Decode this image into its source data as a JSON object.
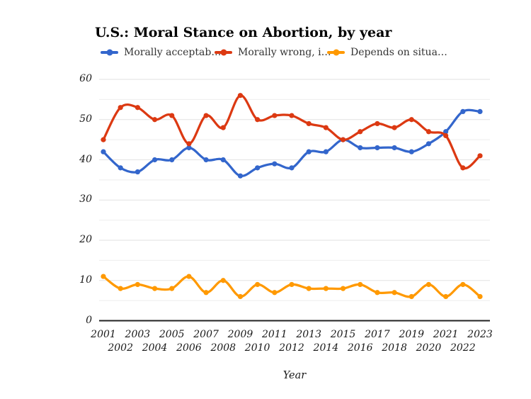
{
  "chart_data": {
    "type": "line",
    "title": "U.S.: Moral Stance on Abortion, by year",
    "xlabel": "Year",
    "ylabel": "",
    "x": [
      2001,
      2002,
      2003,
      2004,
      2005,
      2006,
      2007,
      2008,
      2009,
      2010,
      2011,
      2012,
      2013,
      2014,
      2015,
      2016,
      2017,
      2018,
      2019,
      2020,
      2021,
      2022,
      2023
    ],
    "yticks": [
      0,
      10,
      20,
      30,
      40,
      50,
      60
    ],
    "ylim": [
      0,
      60
    ],
    "grid": "horizontal major every 10, minor every 5",
    "legend_position": "top",
    "series": [
      {
        "name": "morally-acceptable",
        "legend_label": "Morally acceptab…",
        "color": "#3366CC",
        "values": [
          42,
          38,
          37,
          40,
          40,
          43,
          40,
          40,
          36,
          38,
          39,
          38,
          42,
          42,
          45,
          43,
          43,
          43,
          42,
          44,
          47,
          52,
          52
        ]
      },
      {
        "name": "morally-wrong",
        "legend_label": "Morally wrong, i…",
        "color": "#DC3912",
        "values": [
          45,
          53,
          53,
          50,
          51,
          44,
          51,
          48,
          56,
          50,
          51,
          51,
          49,
          48,
          45,
          47,
          49,
          48,
          50,
          47,
          46,
          38,
          41
        ]
      },
      {
        "name": "depends-on-situation",
        "legend_label": "Depends on situa…",
        "color": "#FF9900",
        "values": [
          11,
          8,
          9,
          8,
          8,
          11,
          7,
          10,
          6,
          9,
          7,
          9,
          8,
          8,
          8,
          9,
          7,
          7,
          6,
          9,
          6,
          9,
          6
        ]
      }
    ],
    "colors": {
      "gridline_major": "#e2e2e2",
      "gridline_minor": "#eeeeee",
      "axis_line": "#222222",
      "tick_text": "#1a1a1a",
      "legend_text": "#333333",
      "title_text": "#000000",
      "background": "#ffffff"
    }
  }
}
